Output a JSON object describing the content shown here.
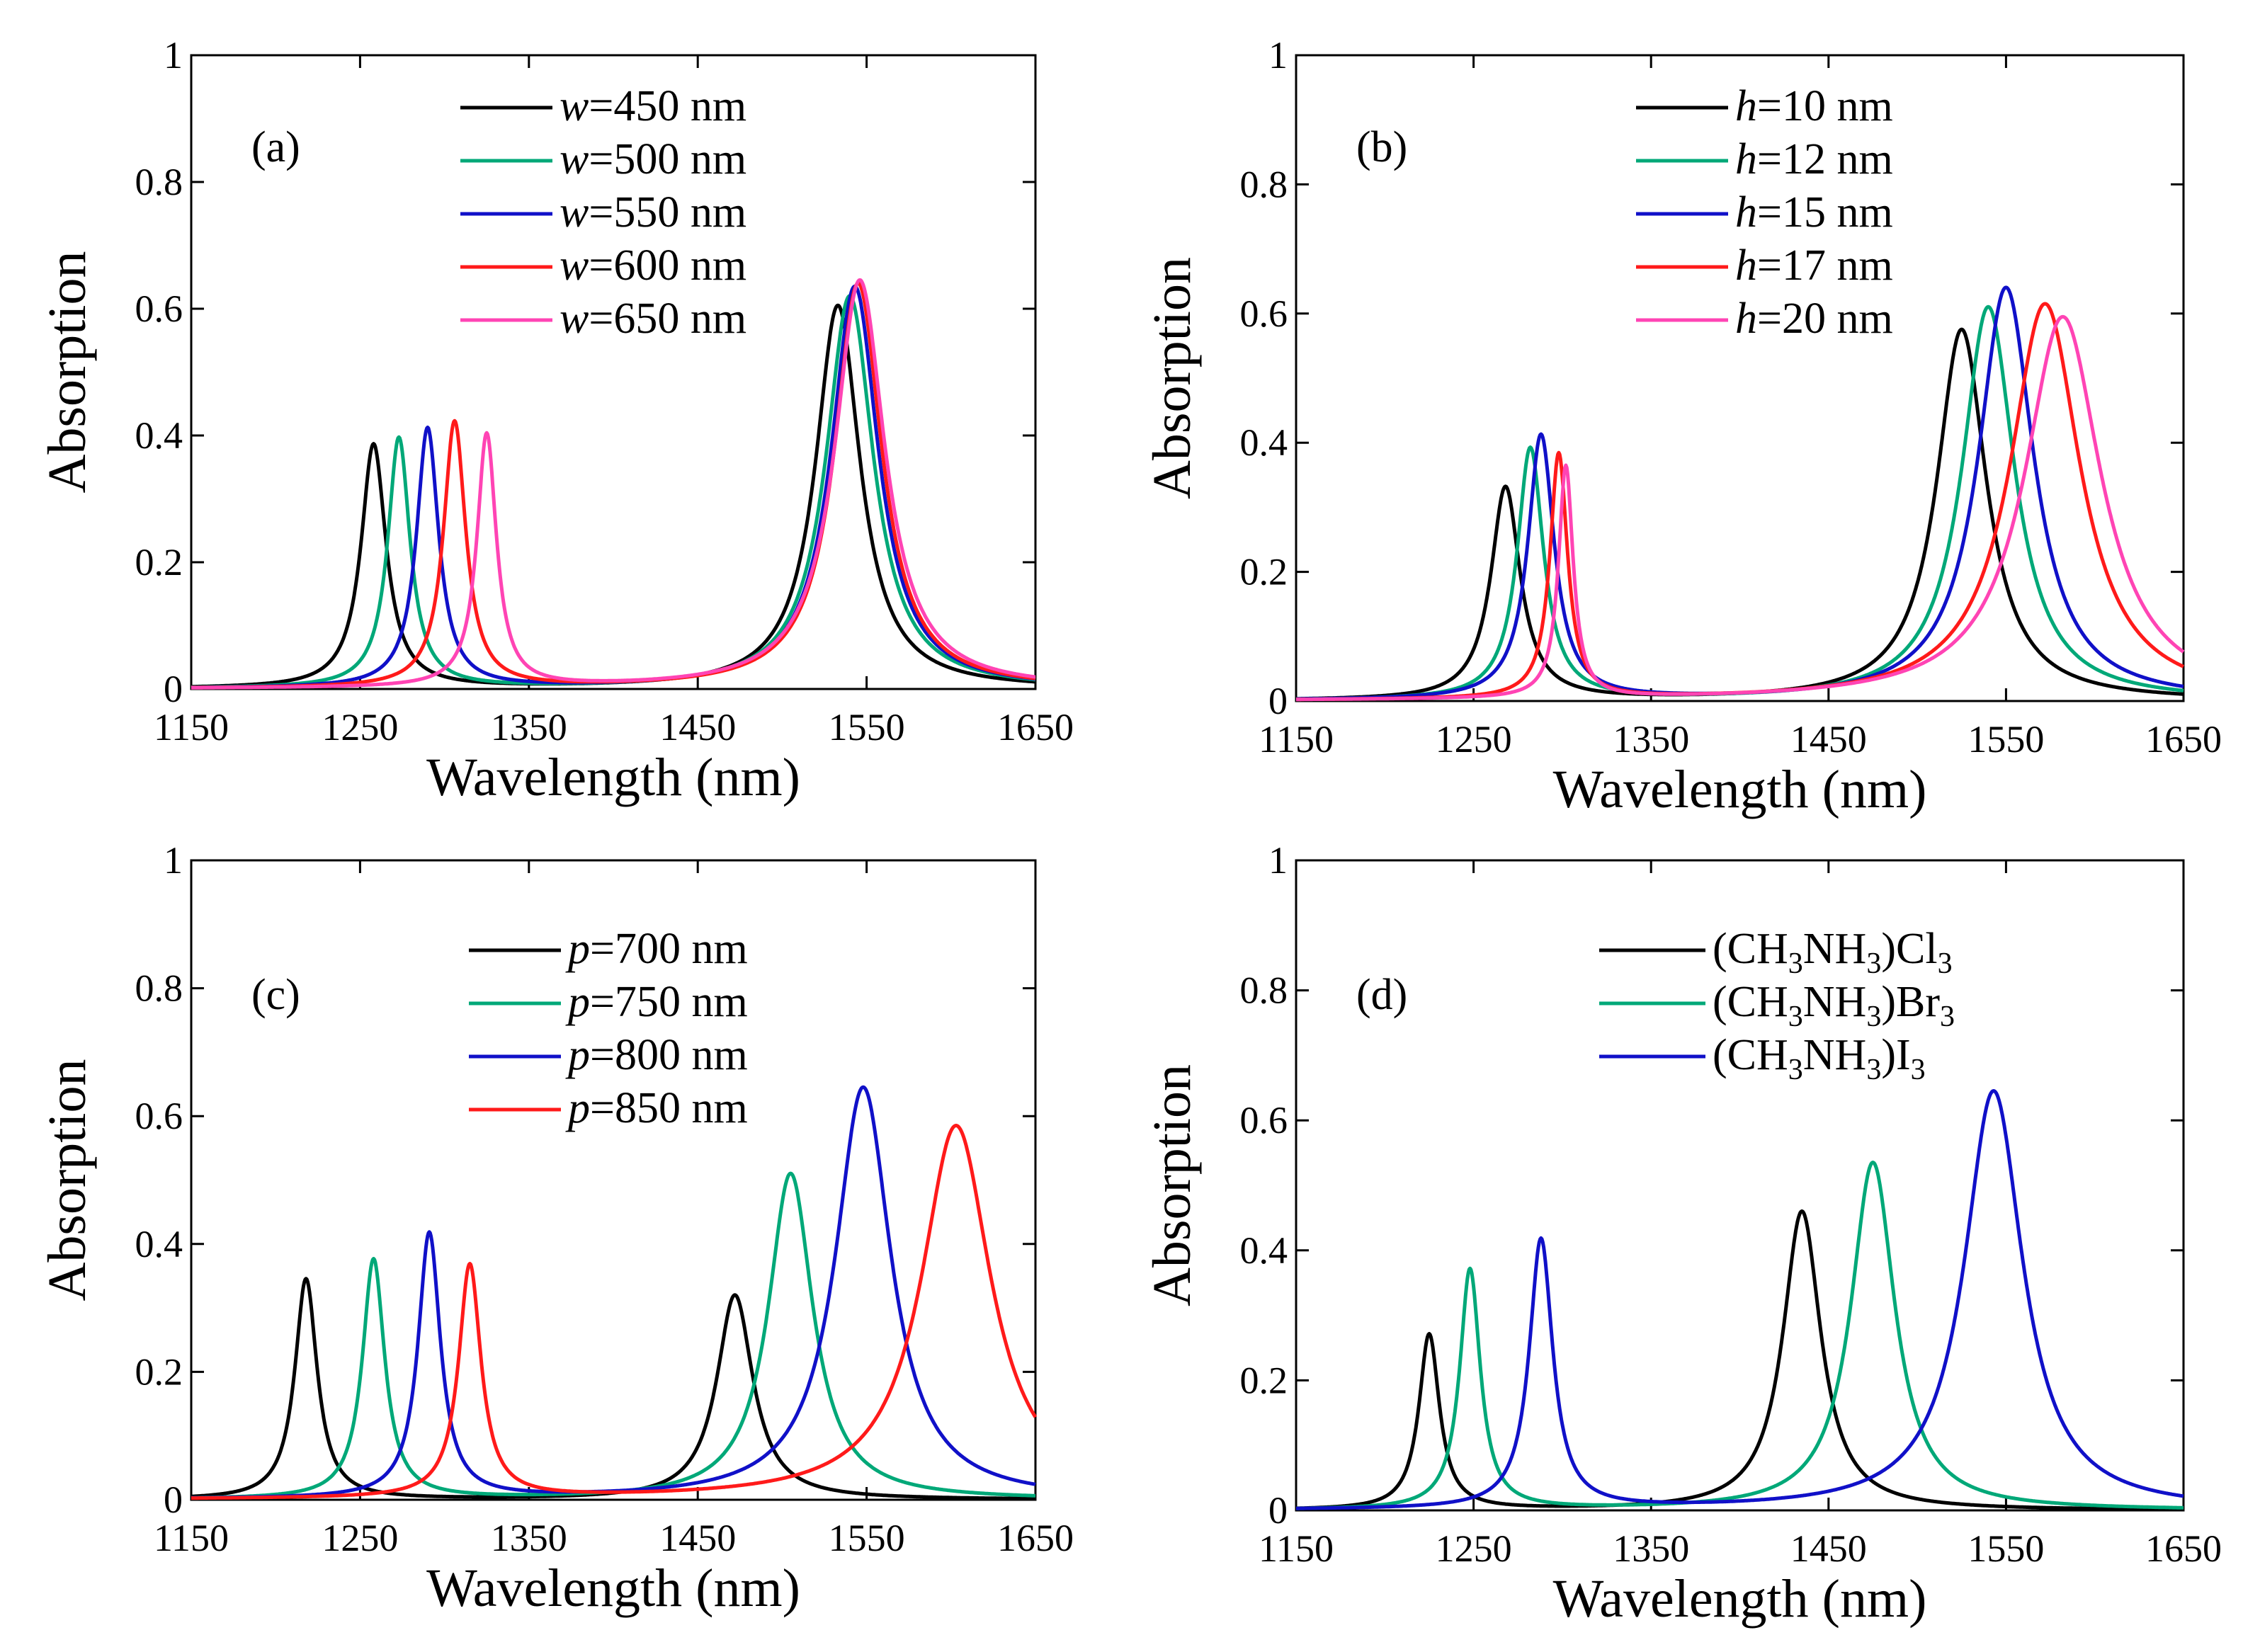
{
  "colors": {
    "black": "#000000",
    "green": "#00a878",
    "blue": "#1010c8",
    "red": "#ff1a1a",
    "pink": "#ff44b4"
  },
  "chart_data": [
    {
      "type": "line",
      "panel": "(a)",
      "xlabel": "Wavelength (nm)",
      "ylabel": "Absorption",
      "xlim": [
        1150,
        1650
      ],
      "ylim": [
        0,
        1
      ],
      "xticks": [
        "1150",
        "1250",
        "1350",
        "1450",
        "1550",
        "1650"
      ],
      "yticks": [
        "0",
        "0.2",
        "0.4",
        "0.6",
        "0.8",
        "1"
      ],
      "legend_position": "top-center",
      "series": [
        {
          "var": "w",
          "rest": "=450 nm",
          "color": "black",
          "peaks": [
            [
              1258,
              0.385,
              9
            ],
            [
              1533,
              0.605,
              16
            ]
          ]
        },
        {
          "var": "w",
          "rest": "=500 nm",
          "color": "green",
          "peaks": [
            [
              1273,
              0.395,
              8
            ],
            [
              1540,
              0.62,
              17
            ]
          ]
        },
        {
          "var": "w",
          "rest": "=550 nm",
          "color": "blue",
          "peaks": [
            [
              1290,
              0.41,
              8
            ],
            [
              1543,
              0.635,
              17
            ]
          ]
        },
        {
          "var": "w",
          "rest": "=600 nm",
          "color": "red",
          "peaks": [
            [
              1306,
              0.42,
              8
            ],
            [
              1545,
              0.64,
              17
            ]
          ]
        },
        {
          "var": "w",
          "rest": "=650 nm",
          "color": "pink",
          "peaks": [
            [
              1325,
              0.4,
              7
            ],
            [
              1546,
              0.645,
              18
            ]
          ]
        }
      ]
    },
    {
      "type": "line",
      "panel": "(b)",
      "xlabel": "Wavelength (nm)",
      "ylabel": "Absorption",
      "xlim": [
        1150,
        1650
      ],
      "ylim": [
        0,
        1
      ],
      "xticks": [
        "1150",
        "1250",
        "1350",
        "1450",
        "1550",
        "1650"
      ],
      "yticks": [
        "0",
        "0.2",
        "0.4",
        "0.6",
        "0.8",
        "1"
      ],
      "legend_position": "top-center",
      "series": [
        {
          "var": "h",
          "rest": "=10 nm",
          "color": "black",
          "peaks": [
            [
              1268,
              0.33,
              10
            ],
            [
              1525,
              0.575,
              17
            ]
          ]
        },
        {
          "var": "h",
          "rest": "=12 nm",
          "color": "green",
          "peaks": [
            [
              1282,
              0.39,
              9
            ],
            [
              1540,
              0.61,
              18
            ]
          ]
        },
        {
          "var": "h",
          "rest": "=15 nm",
          "color": "blue",
          "peaks": [
            [
              1288,
              0.41,
              9
            ],
            [
              1550,
              0.64,
              19
            ]
          ]
        },
        {
          "var": "h",
          "rest": "=17 nm",
          "color": "red",
          "peaks": [
            [
              1298,
              0.38,
              6
            ],
            [
              1572,
              0.615,
              24
            ]
          ]
        },
        {
          "var": "h",
          "rest": "=20 nm",
          "color": "pink",
          "peaks": [
            [
              1302,
              0.36,
              5
            ],
            [
              1582,
              0.595,
              26
            ]
          ]
        }
      ]
    },
    {
      "type": "line",
      "panel": "(c)",
      "xlabel": "Wavelength (nm)",
      "ylabel": "Absorption",
      "xlim": [
        1150,
        1650
      ],
      "ylim": [
        0,
        1
      ],
      "xticks": [
        "1150",
        "1250",
        "1350",
        "1450",
        "1550",
        "1650"
      ],
      "yticks": [
        "0",
        "0.2",
        "0.4",
        "0.6",
        "0.8",
        "1"
      ],
      "legend_position": "top-center",
      "series": [
        {
          "var": "p",
          "rest": "=700 nm",
          "color": "black",
          "peaks": [
            [
              1218,
              0.345,
              8
            ],
            [
              1472,
              0.32,
              13
            ]
          ]
        },
        {
          "var": "p",
          "rest": "=750 nm",
          "color": "green",
          "peaks": [
            [
              1258,
              0.375,
              8
            ],
            [
              1505,
              0.51,
              16
            ]
          ]
        },
        {
          "var": "p",
          "rest": "=800 nm",
          "color": "blue",
          "peaks": [
            [
              1291,
              0.415,
              8
            ],
            [
              1548,
              0.645,
              20
            ]
          ]
        },
        {
          "var": "p",
          "rest": "=850 nm",
          "color": "red",
          "peaks": [
            [
              1315,
              0.365,
              8
            ],
            [
              1603,
              0.585,
              25
            ]
          ]
        }
      ]
    },
    {
      "type": "line",
      "panel": "(d)",
      "xlabel": "Wavelength (nm)",
      "ylabel": "Absorption",
      "xlim": [
        1150,
        1650
      ],
      "ylim": [
        0,
        1
      ],
      "xticks": [
        "1150",
        "1250",
        "1350",
        "1450",
        "1550",
        "1650"
      ],
      "yticks": [
        "0",
        "0.2",
        "0.4",
        "0.6",
        "0.8",
        "1"
      ],
      "legend_position": "top-center",
      "series": [
        {
          "label": "(CH3NH3)Cl3",
          "parts": [
            "(CH",
            "3",
            "NH",
            "3",
            ")Cl",
            "3"
          ],
          "color": "black",
          "peaks": [
            [
              1225,
              0.27,
              7
            ],
            [
              1435,
              0.46,
              13
            ]
          ]
        },
        {
          "label": "(CH3NH3)Br3",
          "parts": [
            "(CH",
            "3",
            "NH",
            "3",
            ")Br",
            "3"
          ],
          "color": "green",
          "peaks": [
            [
              1248,
              0.37,
              7
            ],
            [
              1475,
              0.535,
              15
            ]
          ]
        },
        {
          "label": "(CH3NH3)I3",
          "parts": [
            "(CH",
            "3",
            "NH",
            "3",
            ")I",
            "3"
          ],
          "color": "blue",
          "peaks": [
            [
              1288,
              0.415,
              8
            ],
            [
              1543,
              0.645,
              20
            ]
          ]
        }
      ]
    }
  ]
}
